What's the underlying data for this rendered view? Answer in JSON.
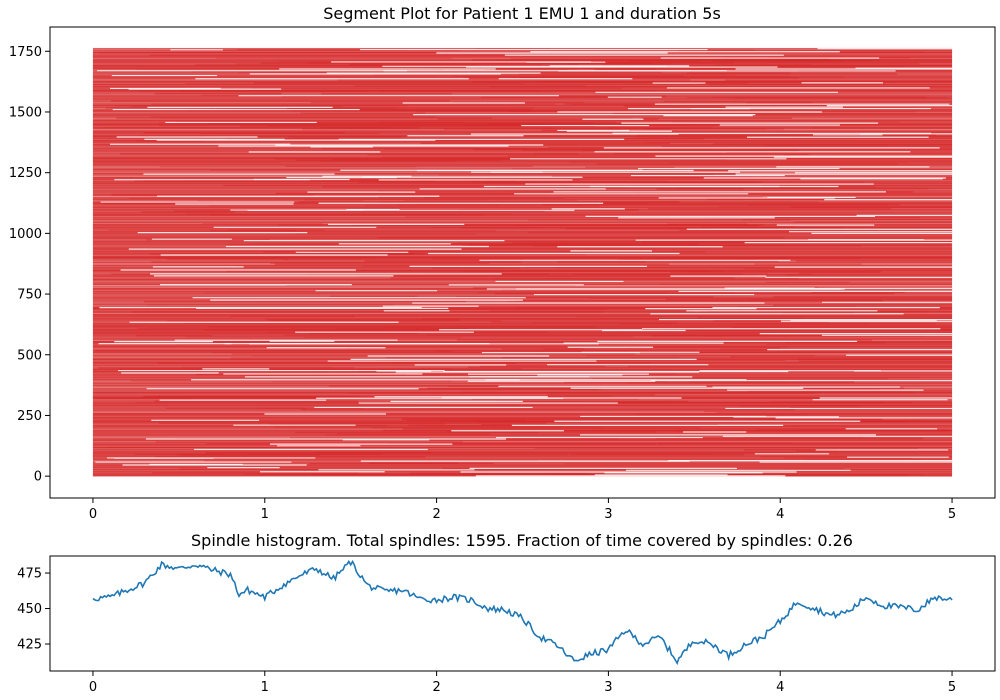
{
  "chart_data": [
    {
      "type": "segments",
      "title": "Segment Plot for Patient 1 EMU 1 and duration 5s",
      "xlabel": "",
      "ylabel": "",
      "xlim": [
        -0.25,
        5.25
      ],
      "ylim": [
        -90,
        1850
      ],
      "xticks": [
        0,
        1,
        2,
        3,
        4,
        5
      ],
      "yticks": [
        0,
        250,
        500,
        750,
        1000,
        1250,
        1500,
        1750
      ],
      "segment_rows": 1763,
      "x_range": [
        0,
        5
      ],
      "color": "#d62728",
      "grid": false,
      "legend": "none"
    },
    {
      "type": "line",
      "title": "Spindle histogram. Total spindles: 1595. Fraction of time covered by spindles: 0.26",
      "xlabel": "",
      "ylabel": "",
      "xlim": [
        -0.25,
        5.25
      ],
      "ylim": [
        406,
        487
      ],
      "xticks": [
        0,
        1,
        2,
        3,
        4,
        5
      ],
      "yticks": [
        425,
        450,
        475
      ],
      "color": "#1f77b4",
      "grid": false,
      "legend": "none",
      "x": [
        0.0,
        0.1,
        0.2,
        0.3,
        0.4,
        0.5,
        0.6,
        0.7,
        0.8,
        0.85,
        0.9,
        1.0,
        1.1,
        1.2,
        1.3,
        1.4,
        1.5,
        1.6,
        1.7,
        1.8,
        1.9,
        2.0,
        2.1,
        2.2,
        2.3,
        2.4,
        2.5,
        2.6,
        2.7,
        2.8,
        2.9,
        3.0,
        3.1,
        3.2,
        3.3,
        3.4,
        3.5,
        3.6,
        3.7,
        3.8,
        3.9,
        4.0,
        4.1,
        4.2,
        4.3,
        4.4,
        4.5,
        4.6,
        4.7,
        4.8,
        4.9,
        5.0
      ],
      "y": [
        457,
        458,
        463,
        468,
        481,
        478,
        481,
        477,
        474,
        460,
        463,
        458,
        466,
        473,
        478,
        471,
        483,
        466,
        462,
        463,
        457,
        456,
        458,
        456,
        450,
        449,
        443,
        430,
        424,
        413,
        418,
        421,
        435,
        425,
        430,
        413,
        428,
        425,
        417,
        425,
        430,
        441,
        455,
        450,
        445,
        448,
        458,
        452,
        451,
        449,
        458,
        456
      ]
    }
  ]
}
